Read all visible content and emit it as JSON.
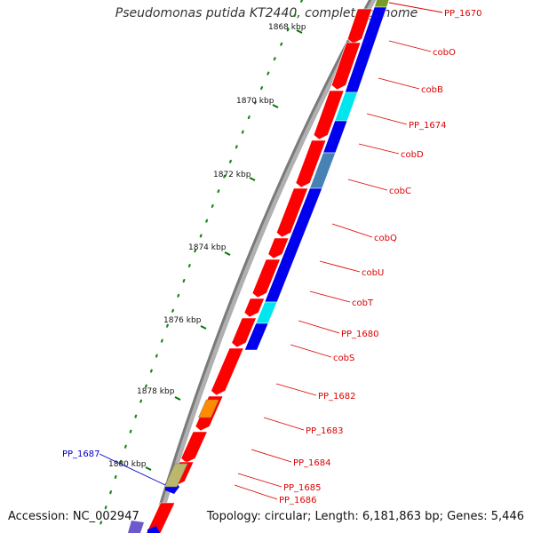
{
  "title": "Pseudomonas putida KT2440, complete genome",
  "accession": "Accession: NC_002947",
  "topology": "Topology: circular; Length: 6,181,863 bp; Genes: 5,446",
  "ruler": [
    {
      "text": "1868 kbp"
    },
    {
      "text": "1870 kbp"
    },
    {
      "text": "1872 kbp"
    },
    {
      "text": "1874 kbp"
    },
    {
      "text": "1876 kbp"
    },
    {
      "text": "1878 kbp"
    },
    {
      "text": "1880 kbp"
    }
  ],
  "genes_outer": [
    {
      "label": "PP_1670",
      "color": "#7a9a2a"
    },
    {
      "label": "cobO",
      "color": "#0000ee"
    },
    {
      "label": "cobB",
      "color": "#0000ee"
    },
    {
      "label": "PP_1674",
      "color": "#00e5ee"
    },
    {
      "label": "cobD",
      "color": "#0000ee"
    },
    {
      "label": "cobC",
      "color": "#4682b4"
    },
    {
      "label": "cobQ",
      "color": "#0000ee"
    },
    {
      "label": "cobU",
      "color": "#0000ee"
    },
    {
      "label": "cobT",
      "color": "#0000ee"
    },
    {
      "label": "PP_1680",
      "color": "#00e5ee"
    },
    {
      "label": "cobS",
      "color": "#0000ee"
    },
    {
      "label": "PP_1682",
      "color": "#ff0000"
    },
    {
      "label": "PP_1683",
      "color": "#ff8c00"
    },
    {
      "label": "PP_1684",
      "color": "#ff0000"
    },
    {
      "label": "PP_1685",
      "color": "#bdb76b"
    },
    {
      "label": "PP_1686",
      "color": "#ff0000"
    }
  ],
  "genes_left": [
    {
      "label": "PP_1687",
      "color": "#0000ee"
    }
  ],
  "colors": {
    "label_red": "#dd0000",
    "label_blue": "#0000cc",
    "backbone": "#808080",
    "tick_green": "#007700"
  }
}
